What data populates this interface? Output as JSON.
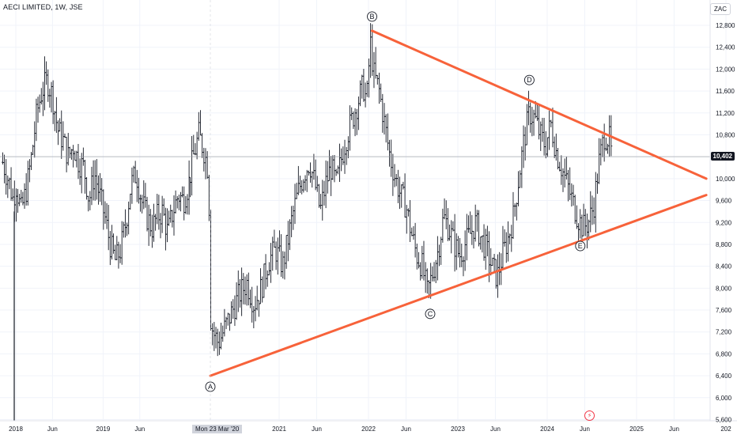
{
  "chart_data": {
    "type": "ohlc",
    "title": "AECI LIMITED, 1W, JSE",
    "currency": "ZAC",
    "last_price": "10,402",
    "y_ticks": [
      5600,
      6000,
      6400,
      6800,
      7200,
      7600,
      8000,
      8400,
      8800,
      9200,
      9600,
      10000,
      10400,
      10800,
      11200,
      11600,
      12000,
      12400,
      12800
    ],
    "y_tick_labels": [
      "5,600",
      "6,000",
      "6,400",
      "6,800",
      "7,200",
      "7,600",
      "8,000",
      "8,400",
      "8,800",
      "9,200",
      "9,600",
      "10,000",
      "10,400",
      "10,800",
      "11,200",
      "11,600",
      "12,000",
      "12,400",
      "12,800"
    ],
    "x_ticks": [
      {
        "label": "2018",
        "t": 2018.0
      },
      {
        "label": "Jun",
        "t": 2018.42
      },
      {
        "label": "2019",
        "t": 2019.0
      },
      {
        "label": "Jun",
        "t": 2019.42
      },
      {
        "label": "2021",
        "t": 2021.0
      },
      {
        "label": "Jun",
        "t": 2021.42
      },
      {
        "label": "2022",
        "t": 2022.0
      },
      {
        "label": "Jun",
        "t": 2022.42
      },
      {
        "label": "2023",
        "t": 2023.0
      },
      {
        "label": "Jun",
        "t": 2023.42
      },
      {
        "label": "2024",
        "t": 2024.0
      },
      {
        "label": "Jun",
        "t": 2024.42
      },
      {
        "label": "2025",
        "t": 2025.0
      },
      {
        "label": "Jun",
        "t": 2025.42
      },
      {
        "label": "202",
        "t": 2026.0
      }
    ],
    "crosshair_date": "Mon 23 Mar '20",
    "price_path": [
      [
        2017.85,
        10300
      ],
      [
        2017.93,
        9900
      ],
      [
        2017.97,
        9600
      ],
      [
        2018.0,
        9900
      ],
      [
        2018.06,
        9400
      ],
      [
        2018.12,
        9800
      ],
      [
        2018.18,
        10400
      ],
      [
        2018.24,
        11200
      ],
      [
        2018.3,
        11600
      ],
      [
        2018.36,
        11800
      ],
      [
        2018.42,
        11500
      ],
      [
        2018.48,
        10900
      ],
      [
        2018.54,
        10700
      ],
      [
        2018.6,
        10400
      ],
      [
        2018.66,
        10600
      ],
      [
        2018.72,
        10300
      ],
      [
        2018.78,
        10200
      ],
      [
        2018.84,
        9600
      ],
      [
        2018.9,
        10100
      ],
      [
        2018.96,
        9700
      ],
      [
        2019.02,
        9300
      ],
      [
        2019.08,
        8800
      ],
      [
        2019.14,
        8500
      ],
      [
        2019.2,
        8700
      ],
      [
        2019.26,
        9200
      ],
      [
        2019.32,
        9900
      ],
      [
        2019.38,
        10100
      ],
      [
        2019.44,
        9600
      ],
      [
        2019.5,
        9300
      ],
      [
        2019.56,
        9100
      ],
      [
        2019.62,
        9300
      ],
      [
        2019.68,
        9400
      ],
      [
        2019.74,
        9000
      ],
      [
        2019.8,
        9400
      ],
      [
        2019.86,
        9700
      ],
      [
        2019.92,
        9600
      ],
      [
        2019.98,
        9900
      ],
      [
        2020.04,
        10400
      ],
      [
        2020.1,
        10800
      ],
      [
        2020.16,
        10500
      ],
      [
        2020.2,
        10200
      ],
      [
        2020.22,
        9300
      ],
      [
        2020.23,
        7500
      ],
      [
        2020.26,
        7200
      ],
      [
        2020.32,
        7000
      ],
      [
        2020.4,
        7300
      ],
      [
        2020.48,
        7600
      ],
      [
        2020.56,
        7900
      ],
      [
        2020.64,
        8100
      ],
      [
        2020.72,
        7700
      ],
      [
        2020.8,
        8000
      ],
      [
        2020.88,
        8500
      ],
      [
        2020.96,
        8700
      ],
      [
        2021.04,
        8400
      ],
      [
        2021.1,
        8900
      ],
      [
        2021.16,
        9400
      ],
      [
        2021.22,
        9800
      ],
      [
        2021.28,
        10100
      ],
      [
        2021.34,
        10300
      ],
      [
        2021.4,
        9900
      ],
      [
        2021.46,
        9400
      ],
      [
        2021.52,
        9900
      ],
      [
        2021.58,
        10200
      ],
      [
        2021.64,
        9900
      ],
      [
        2021.7,
        10400
      ],
      [
        2021.76,
        10800
      ],
      [
        2021.82,
        11100
      ],
      [
        2021.88,
        11400
      ],
      [
        2021.94,
        11700
      ],
      [
        2021.98,
        11400
      ],
      [
        2022.02,
        12500
      ],
      [
        2022.06,
        11900
      ],
      [
        2022.12,
        11600
      ],
      [
        2022.18,
        11000
      ],
      [
        2022.24,
        10400
      ],
      [
        2022.3,
        10000
      ],
      [
        2022.36,
        9700
      ],
      [
        2022.42,
        9500
      ],
      [
        2022.48,
        9000
      ],
      [
        2022.54,
        8600
      ],
      [
        2022.6,
        8400
      ],
      [
        2022.66,
        7900
      ],
      [
        2022.72,
        8300
      ],
      [
        2022.78,
        8700
      ],
      [
        2022.84,
        9300
      ],
      [
        2022.9,
        9100
      ],
      [
        2022.96,
        8800
      ],
      [
        2023.02,
        8600
      ],
      [
        2023.08,
        8800
      ],
      [
        2023.14,
        9000
      ],
      [
        2023.2,
        9200
      ],
      [
        2023.26,
        8900
      ],
      [
        2023.32,
        8700
      ],
      [
        2023.38,
        8400
      ],
      [
        2023.44,
        8200
      ],
      [
        2023.5,
        8600
      ],
      [
        2023.56,
        8900
      ],
      [
        2023.62,
        9300
      ],
      [
        2023.68,
        10000
      ],
      [
        2023.74,
        10700
      ],
      [
        2023.8,
        11200
      ],
      [
        2023.86,
        11100
      ],
      [
        2023.92,
        10800
      ],
      [
        2023.98,
        10600
      ],
      [
        2024.04,
        11000
      ],
      [
        2024.1,
        10500
      ],
      [
        2024.16,
        10200
      ],
      [
        2024.22,
        9900
      ],
      [
        2024.28,
        9600
      ],
      [
        2024.34,
        9300
      ],
      [
        2024.4,
        9100
      ],
      [
        2024.46,
        9200
      ],
      [
        2024.52,
        9500
      ],
      [
        2024.58,
        10300
      ],
      [
        2024.64,
        10800
      ],
      [
        2024.7,
        10700
      ],
      [
        2024.72,
        10402
      ]
    ],
    "trendlines": [
      {
        "name": "upper-trendline",
        "from": [
          2022.04,
          12700
        ],
        "to": [
          2025.78,
          10000
        ],
        "color": "#f7623a"
      },
      {
        "name": "lower-trendline",
        "from": [
          2020.23,
          6400
        ],
        "to": [
          2025.78,
          9700
        ],
        "color": "#f7623a"
      }
    ],
    "wave_labels": [
      {
        "text": "A",
        "t": 2020.23,
        "price": 6200
      },
      {
        "text": "B",
        "t": 2022.04,
        "price": 12960
      },
      {
        "text": "C",
        "t": 2022.69,
        "price": 7530
      },
      {
        "text": "D",
        "t": 2023.8,
        "price": 11800
      },
      {
        "text": "E",
        "t": 2024.37,
        "price": 8770
      }
    ]
  },
  "ui": {
    "flash_icon": "lightning-icon",
    "flash_glyph": "⚡"
  }
}
